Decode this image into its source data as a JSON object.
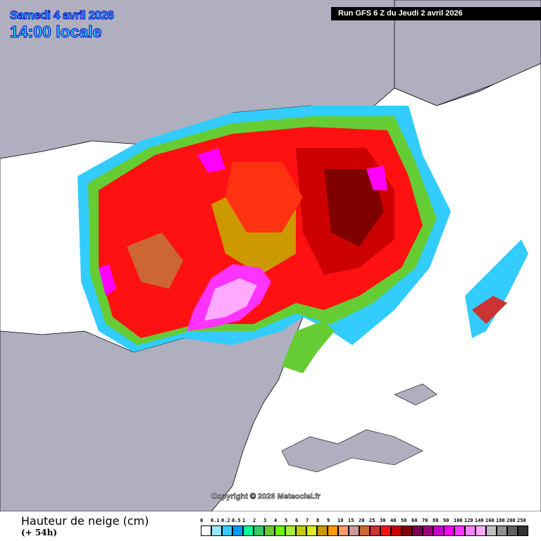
{
  "header": {
    "date": "Samedi 4 avril 2026",
    "time": "14:00 locale",
    "run": "Run GFS 6 Z du Jeudi 2 avril 2026"
  },
  "map": {
    "ocean_color": "#afafbf",
    "land_color": "#ffffff",
    "copyright": "Copyright © 2026 Meteociel.fr"
  },
  "footer": {
    "title": "Hauteur de neige (cm)",
    "lead": "(+ 54h)"
  },
  "legend": {
    "labels": [
      "0",
      "0.1",
      "0.2",
      "0.5",
      "1",
      "2",
      "3",
      "4",
      "5",
      "6",
      "7",
      "8",
      "9",
      "10",
      "15",
      "20",
      "25",
      "30",
      "40",
      "50",
      "60",
      "70",
      "80",
      "90",
      "100",
      "120",
      "140",
      "160",
      "180",
      "200",
      "250"
    ],
    "colors": [
      "#ffffff",
      "#99e6ff",
      "#33ccff",
      "#0099ff",
      "#00ff99",
      "#33cc66",
      "#66cc33",
      "#66ff00",
      "#a6f032",
      "#bfcc12",
      "#d9ee14",
      "#cc9900",
      "#ff9900",
      "#ff9966",
      "#cc9999",
      "#cc6633",
      "#cc3333",
      "#ff1111",
      "#cc0000",
      "#800000",
      "#800050",
      "#a00080",
      "#cc00cc",
      "#ff00ff",
      "#ff33ff",
      "#ff80ff",
      "#ffaaff",
      "#c0c0c0",
      "#909090",
      "#606060",
      "#333333"
    ]
  }
}
